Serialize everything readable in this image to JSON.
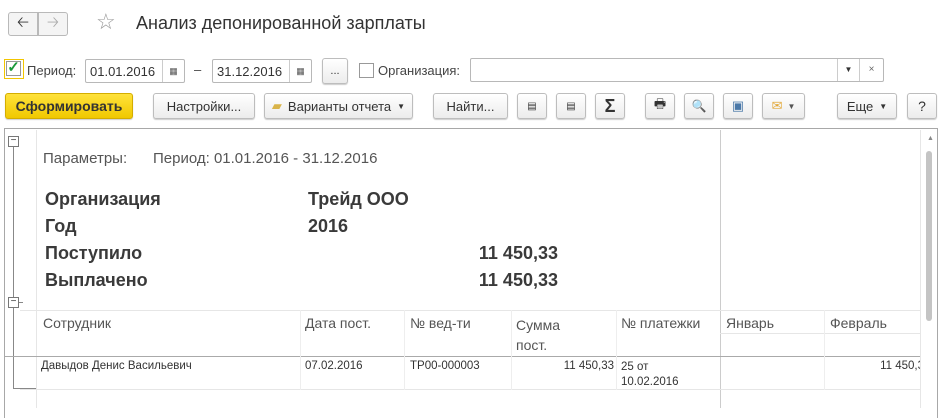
{
  "window": {
    "title": "Анализ депонированной зарплаты",
    "back_icon": "arrow-left-icon",
    "forward_icon": "arrow-right-icon",
    "favorite_icon": "star-icon"
  },
  "filters": {
    "period_checked": true,
    "period_label": "Период:",
    "date_from": "01.01.2016",
    "dash": "–",
    "date_to": "31.12.2016",
    "more_label": "...",
    "org_checked": false,
    "org_label": "Организация:",
    "org_value": ""
  },
  "toolbar": {
    "generate": "Сформировать",
    "settings": "Настройки...",
    "variants": "Варианты отчета",
    "find": "Найти...",
    "sigma": "Σ",
    "more": "Еще",
    "help": "?",
    "accent": "#f5d000"
  },
  "report": {
    "params_label": "Параметры:",
    "params_value": "Период: 01.01.2016 - 31.12.2016",
    "summary": [
      {
        "label": "Организация",
        "value": "Трейд ООО"
      },
      {
        "label": "Год",
        "value": "2016"
      },
      {
        "label": "Поступило",
        "value": "11 450,33"
      },
      {
        "label": "Выплачено",
        "value": "11 450,33"
      }
    ],
    "columns": [
      "Сотрудник",
      "Дата пост.",
      "№ вед-ти",
      "Сумма пост.",
      "№ платежки",
      "Январь",
      "Февраль"
    ],
    "rows": [
      {
        "employee": "Давыдов Денис Васильевич",
        "date": "07.02.2016",
        "statement": "ТР00-000003",
        "amount": "11 450,33",
        "payment": "25 от 10.02.2016",
        "jan": "",
        "feb": "11 450,3"
      }
    ]
  }
}
